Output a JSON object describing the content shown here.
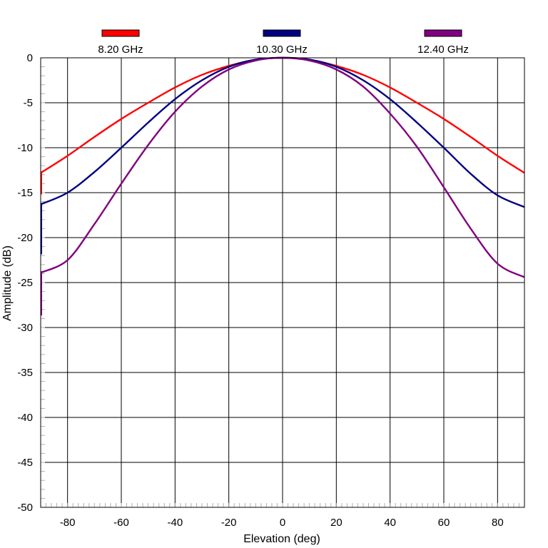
{
  "chart_data": {
    "type": "line",
    "xlabel": "Elevation (deg)",
    "ylabel": "Amplitude (dB)",
    "xlim": [
      -90,
      90
    ],
    "ylim": [
      -50,
      0
    ],
    "xticks": [
      -80,
      -60,
      -40,
      -20,
      0,
      20,
      40,
      60,
      80
    ],
    "yticks": [
      0,
      -5,
      -10,
      -15,
      -20,
      -25,
      -30,
      -35,
      -40,
      -45,
      -50
    ],
    "grid": true,
    "legend_position": "top",
    "series": [
      {
        "name": "8.20 GHz",
        "color": "#ff0000",
        "x": [
          -90,
          -80,
          -70,
          -60,
          -50,
          -40,
          -30,
          -20,
          -10,
          0,
          10,
          20,
          30,
          40,
          50,
          60,
          70,
          80,
          90
        ],
        "y": [
          -12.8,
          -10.9,
          -8.8,
          -6.8,
          -5.0,
          -3.3,
          -1.9,
          -0.9,
          -0.2,
          0,
          -0.2,
          -0.9,
          -1.9,
          -3.3,
          -5.0,
          -6.8,
          -8.8,
          -10.9,
          -12.8
        ]
      },
      {
        "name": "10.30 GHz",
        "color": "#000080",
        "x": [
          -90,
          -80,
          -70,
          -60,
          -50,
          -40,
          -30,
          -20,
          -10,
          0,
          10,
          20,
          30,
          40,
          50,
          60,
          70,
          80,
          90
        ],
        "y": [
          -16.3,
          -15.0,
          -12.7,
          -10.0,
          -7.2,
          -4.6,
          -2.5,
          -1.0,
          -0.2,
          0,
          -0.2,
          -1.0,
          -2.5,
          -4.6,
          -7.2,
          -10.0,
          -12.9,
          -15.3,
          -16.6
        ]
      },
      {
        "name": "12.40 GHz",
        "color": "#800080",
        "x": [
          -90,
          -80,
          -70,
          -60,
          -50,
          -40,
          -30,
          -20,
          -10,
          0,
          10,
          20,
          30,
          40,
          50,
          60,
          70,
          80,
          90
        ],
        "y": [
          -23.9,
          -22.5,
          -18.5,
          -14.0,
          -9.7,
          -6.0,
          -3.2,
          -1.3,
          -0.3,
          0,
          -0.3,
          -1.3,
          -3.2,
          -6.2,
          -9.9,
          -14.4,
          -19.0,
          -22.9,
          -24.4
        ]
      }
    ]
  }
}
